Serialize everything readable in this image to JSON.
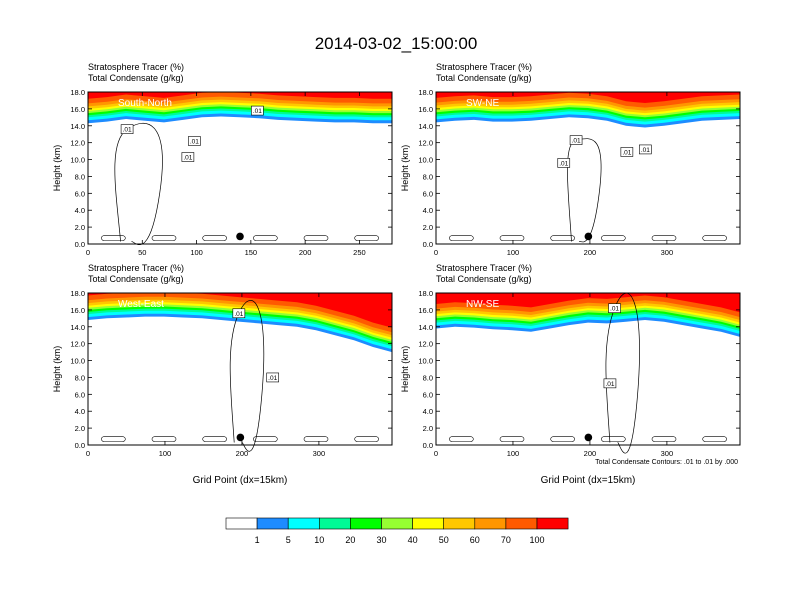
{
  "chart_data": {
    "type": "heatmap",
    "title": "2014-03-02_15:00:00",
    "colorbar": {
      "levels": [
        "1",
        "5",
        "10",
        "20",
        "30",
        "40",
        "50",
        "60",
        "70",
        "100"
      ],
      "colors": [
        "#ffffff",
        "#1e8cff",
        "#00ffff",
        "#00fa96",
        "#00ff00",
        "#96ff32",
        "#ffff00",
        "#ffc800",
        "#ff9600",
        "#ff5a00",
        "#ff0000"
      ]
    },
    "contour_info": "Total Condensate Contours: .01 to .01 by .000",
    "panels": [
      {
        "id": "south-north",
        "line1": "Stratosphere Tracer   (%)",
        "line2": "Total Condensate   (g/kg)",
        "label": "South-North",
        "ylabel": "Height (km)",
        "xlabel": "",
        "xlim": [
          0,
          280
        ],
        "ylim": [
          0,
          18
        ],
        "xticks": [
          "0",
          "50",
          "100",
          "150",
          "200",
          "250"
        ],
        "xtick_values": [
          0,
          50,
          100,
          150,
          200,
          250
        ],
        "yticks": [
          "0.0",
          "2.0",
          "4.0",
          "6.0",
          "8.0",
          "10.0",
          "12.0",
          "14.0",
          "16.0",
          "18.0"
        ],
        "marker_x": 140,
        "contour_labels": [
          {
            "text": ".01",
            "x": 36,
            "y": 13.6
          },
          {
            "text": ".01",
            "x": 98,
            "y": 12.2
          },
          {
            "text": ".01",
            "x": 92,
            "y": 10.3
          },
          {
            "text": ".01",
            "x": 156,
            "y": 15.8
          }
        ],
        "tracer_base": [
          14.3,
          14.5,
          14.8,
          14.6,
          14.4,
          14.7,
          15.0,
          15.1,
          15.0,
          14.9,
          14.7,
          14.6,
          14.5,
          14.4,
          14.4,
          14.3,
          14.3
        ],
        "tracer_top": [
          18,
          18,
          18,
          18,
          18,
          18,
          18,
          18,
          18,
          18,
          18,
          18,
          18,
          18,
          18,
          18,
          18
        ]
      },
      {
        "id": "sw-ne",
        "line1": "Stratosphere Tracer   (%)",
        "line2": "Total Condensate   (g/kg)",
        "label": "SW-NE",
        "ylabel": "Height (km)",
        "xlabel": "",
        "xlim": [
          0,
          395
        ],
        "ylim": [
          0,
          18
        ],
        "xticks": [
          "0",
          "100",
          "200",
          "300"
        ],
        "xtick_values": [
          0,
          100,
          200,
          300
        ],
        "yticks": [
          "0.0",
          "2.0",
          "4.0",
          "6.0",
          "8.0",
          "10.0",
          "12.0",
          "14.0",
          "16.0",
          "18.0"
        ],
        "marker_x": 198,
        "contour_labels": [
          {
            "text": ".01",
            "x": 182,
            "y": 12.3
          },
          {
            "text": ".01",
            "x": 166,
            "y": 9.6
          },
          {
            "text": ".01",
            "x": 248,
            "y": 10.9
          },
          {
            "text": ".01",
            "x": 272,
            "y": 11.2
          }
        ],
        "tracer_base": [
          14.4,
          14.6,
          14.7,
          14.5,
          14.5,
          14.6,
          14.8,
          15.0,
          14.9,
          14.6,
          14.0,
          13.8,
          14.0,
          14.3,
          14.6,
          14.7,
          14.8
        ],
        "tracer_top": [
          18,
          18,
          18,
          18,
          18,
          18,
          18,
          18,
          18,
          18,
          18,
          18,
          18,
          18,
          18,
          18,
          18
        ]
      },
      {
        "id": "west-east",
        "line1": "Stratosphere Tracer   (%)",
        "line2": "Total Condensate   (g/kg)",
        "label": "West-East",
        "ylabel": "Height (km)",
        "xlabel": "Grid Point (dx=15km)",
        "xlim": [
          0,
          395
        ],
        "ylim": [
          0,
          18
        ],
        "xticks": [
          "0",
          "100",
          "200",
          "300"
        ],
        "xtick_values": [
          0,
          100,
          200,
          300
        ],
        "yticks": [
          "0.0",
          "2.0",
          "4.0",
          "6.0",
          "8.0",
          "10.0",
          "12.0",
          "14.0",
          "16.0",
          "18.0"
        ],
        "marker_x": 198,
        "contour_labels": [
          {
            "text": ".01",
            "x": 196,
            "y": 15.6
          },
          {
            "text": ".01",
            "x": 240,
            "y": 8.0
          }
        ],
        "tracer_base": [
          14.8,
          15.0,
          15.1,
          15.2,
          15.2,
          15.1,
          15.0,
          14.8,
          14.6,
          14.4,
          14.2,
          14.0,
          13.6,
          13.0,
          12.4,
          11.6,
          11.0
        ],
        "tracer_top": [
          18,
          18,
          18,
          18,
          18,
          18,
          18,
          18,
          18,
          18,
          18,
          18,
          18,
          18,
          18,
          18,
          18
        ]
      },
      {
        "id": "nw-se",
        "line1": "Stratosphere Tracer   (%)",
        "line2": "Total Condensate   (g/kg)",
        "label": "NW-SE",
        "ylabel": "Height (km)",
        "xlabel": "Grid Point (dx=15km)",
        "xlim": [
          0,
          395
        ],
        "ylim": [
          0,
          18
        ],
        "xticks": [
          "0",
          "100",
          "200",
          "300"
        ],
        "xtick_values": [
          0,
          100,
          200,
          300
        ],
        "yticks": [
          "0.0",
          "2.0",
          "4.0",
          "6.0",
          "8.0",
          "10.0",
          "12.0",
          "14.0",
          "16.0",
          "18.0"
        ],
        "marker_x": 198,
        "contour_labels": [
          {
            "text": ".01",
            "x": 232,
            "y": 16.2
          },
          {
            "text": ".01",
            "x": 226,
            "y": 7.3
          }
        ],
        "tracer_base": [
          13.8,
          14.0,
          13.9,
          13.7,
          13.6,
          13.4,
          13.8,
          14.2,
          14.5,
          14.4,
          14.6,
          14.8,
          14.6,
          14.2,
          13.8,
          13.4,
          12.8
        ],
        "tracer_top": [
          18,
          18,
          18,
          18,
          18,
          18,
          18,
          18,
          18,
          18,
          18,
          18,
          18,
          18,
          18,
          18,
          18
        ]
      }
    ]
  }
}
